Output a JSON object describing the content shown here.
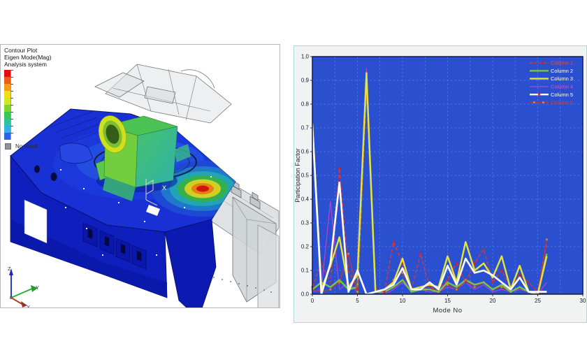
{
  "left_panel": {
    "title_lines": [
      "Contour Plot",
      "Eigen Mode(Mag)",
      "Analysis system"
    ],
    "no_result_label": "No result",
    "colorbar_colors": [
      "#e30d0d",
      "#f05a16",
      "#f39c17",
      "#f2dc18",
      "#cfe822",
      "#7fd52a",
      "#36c84e",
      "#2ac49e",
      "#31b0e4",
      "#2a62ea"
    ],
    "triad": {
      "x_label": "X",
      "y_label": "Y",
      "z_label": "Z"
    }
  },
  "chart_data": {
    "type": "line",
    "title": "",
    "xlabel": "Mode No",
    "ylabel": "Participation Factor",
    "xlim": [
      0,
      30
    ],
    "ylim": [
      0.0,
      1.0
    ],
    "x_ticks": [
      0,
      5,
      10,
      15,
      20,
      25,
      30
    ],
    "y_ticks": [
      "0.0",
      "0.1",
      "0.2",
      "0.3",
      "0.4",
      "0.5",
      "0.6",
      "0.7",
      "0.8",
      "0.9",
      "1.0"
    ],
    "grid": true,
    "plot_bg": "#2b50cf",
    "grid_color": "#5d78e0",
    "border_color": "#141a4a",
    "legend_position": "top-right",
    "x": [
      0,
      1,
      2,
      3,
      4,
      5,
      6,
      7,
      8,
      9,
      10,
      11,
      12,
      13,
      14,
      15,
      16,
      17,
      18,
      19,
      20,
      21,
      22,
      23,
      24,
      25,
      26
    ],
    "series": [
      {
        "name": "Column 1",
        "color": "#dd3434",
        "label_color": "#e05050",
        "style": "dashed",
        "width": 1.6,
        "marker": "square",
        "marker_color": "#cc2626",
        "values": [
          0.03,
          0.13,
          0.05,
          0.53,
          0.1,
          0.02,
          0.87,
          0.02,
          0.01,
          0.22,
          0.13,
          0.02,
          0.17,
          0.03,
          0.02,
          0.06,
          0.13,
          0.05,
          0.13,
          0.19,
          0.05,
          0.1,
          0.03,
          0.08,
          0.05,
          0.01,
          0.22
        ]
      },
      {
        "name": "Column 2",
        "color": "#7cc247",
        "label_color": "#ffffff",
        "style": "solid",
        "width": 2.4,
        "marker": "none",
        "marker_color": "",
        "values": [
          0.02,
          0.05,
          0.03,
          0.06,
          0.02,
          0.03,
          0.9,
          0.01,
          0.01,
          0.03,
          0.06,
          0.01,
          0.02,
          0.02,
          0.01,
          0.05,
          0.03,
          0.06,
          0.04,
          0.05,
          0.02,
          0.04,
          0.01,
          0.03,
          0.01,
          0.0,
          0.17
        ]
      },
      {
        "name": "Column 3",
        "color": "#e4e43c",
        "label_color": "#ffffff",
        "style": "solid",
        "width": 2.4,
        "marker": "none",
        "marker_color": "",
        "values": [
          0.72,
          0.02,
          0.12,
          0.24,
          0.03,
          0.08,
          0.93,
          0.01,
          0.02,
          0.05,
          0.15,
          0.02,
          0.03,
          0.04,
          0.03,
          0.16,
          0.05,
          0.22,
          0.1,
          0.13,
          0.07,
          0.16,
          0.02,
          0.12,
          0.01,
          0.0,
          0.16
        ]
      },
      {
        "name": "Column 4",
        "color": "#bb3fd0",
        "label_color": "#cc55dd",
        "style": "solid",
        "width": 1.2,
        "marker": "none",
        "marker_color": "",
        "values": [
          0.01,
          0.02,
          0.39,
          0.02,
          0.05,
          0.01,
          0.95,
          0.01,
          0.0,
          0.02,
          0.05,
          0.01,
          0.02,
          0.01,
          0.01,
          0.03,
          0.02,
          0.05,
          0.02,
          0.04,
          0.01,
          0.02,
          0.01,
          0.02,
          0.01,
          0.0,
          0.05
        ]
      },
      {
        "name": "Column 5",
        "color": "#ffffff",
        "label_color": "#ffffff",
        "style": "solid",
        "width": 2.6,
        "marker": "none",
        "marker_color": "",
        "legend_dot": "#e03030",
        "values": [
          0.71,
          0.0,
          0.13,
          0.47,
          0.01,
          0.1,
          0.0,
          0.01,
          0.02,
          0.04,
          0.11,
          0.02,
          0.02,
          0.05,
          0.02,
          0.12,
          0.04,
          0.15,
          0.09,
          0.1,
          0.08,
          0.05,
          0.02,
          0.07,
          0.01,
          0.01,
          0.01
        ]
      },
      {
        "name": "Column 6",
        "color": "#a63d4d",
        "label_color": "#bb4455",
        "style": "solid",
        "width": 1.5,
        "marker": "square",
        "marker_color": "#cf8a2e",
        "values": [
          0.02,
          0.01,
          0.02,
          0.05,
          0.17,
          0.01,
          0.93,
          0.02,
          0.01,
          0.06,
          0.09,
          0.02,
          0.02,
          0.03,
          0.01,
          0.04,
          0.02,
          0.06,
          0.03,
          0.05,
          0.02,
          0.03,
          0.01,
          0.03,
          0.01,
          0.0,
          0.23
        ]
      }
    ]
  }
}
